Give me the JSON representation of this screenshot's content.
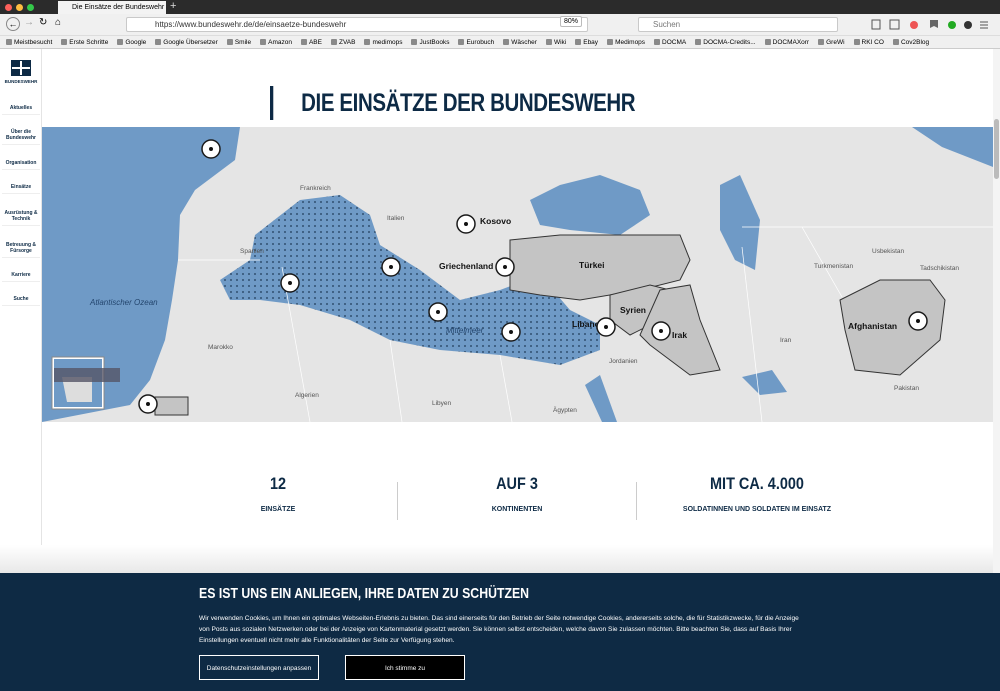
{
  "browser": {
    "tab_title": "Die Einsätze der Bundeswehr",
    "url": "https://www.bundeswehr.de/de/einsaetze-bundeswehr",
    "zoom": "80%",
    "search_placeholder": "Suchen",
    "bookmarks": [
      "Meistbesucht",
      "Erste Schritte",
      "Google",
      "Google Übersetzer",
      "Smile",
      "Amazon",
      "ABE",
      "ZVAB",
      "medimops",
      "JustBooks",
      "Eurobuch",
      "Wäscher",
      "Wiki",
      "Ebay",
      "Medimops",
      "DOCMA",
      "DOCMA-Credits...",
      "DOCMAXorr",
      "GreWi",
      "RKI CO",
      "Cov2Blog"
    ]
  },
  "sidebar": {
    "logo": "BUNDESWEHR",
    "items": [
      "Aktuelles",
      "Über die Bundeswehr",
      "Organisation",
      "Einsätze",
      "Ausrüstung & Technik",
      "Betreuung & Fürsorge",
      "Karriere",
      "Suche"
    ]
  },
  "page": {
    "title": "DIE EINSÄTZE DER BUNDESWEHR"
  },
  "map": {
    "labels": [
      "Frankreich",
      "Spanien",
      "Atlantischer Ozean",
      "Marokko",
      "Algerien",
      "Libyen",
      "Ägypten",
      "Italien",
      "Kosovo",
      "Griechenland",
      "Türkei",
      "Mittelmeer",
      "Libanon",
      "Syrien",
      "Irak",
      "Jordanien",
      "Iran",
      "Turkmenistan",
      "Usbekistan",
      "Tadschikistan",
      "Afghanistan",
      "Pakistan"
    ]
  },
  "stats": [
    {
      "value": "12",
      "label": "EINSÄTZE"
    },
    {
      "value": "AUF 3",
      "label": "KONTINENTEN"
    },
    {
      "value": "MIT CA. 4.000",
      "label": "SOLDATINNEN UND SOLDATEN IM EINSATZ"
    }
  ],
  "cookie_banner": {
    "title": "ES IST UNS EIN ANLIEGEN, IHRE DATEN ZU SCHÜTZEN",
    "text": "Wir verwenden Cookies, um Ihnen ein optimales Webseiten-Erlebnis zu bieten. Das sind einerseits für den Betrieb der Seite notwendige Cookies, andererseits solche, die für Statistikzwecke, für die Anzeige von Posts aus sozialen Netzwerken oder bei der Anzeige von Kartenmaterial gesetzt werden. Sie können selbst entscheiden, welche davon Sie zulassen möchten. Bitte beachten Sie, dass auf Basis Ihrer Einstellungen eventuell nicht mehr alle Funktionalitäten der Seite zur Verfügung stehen.",
    "buttons": [
      "Datenschutzeinstellungen anpassen",
      "Ich stimme zu"
    ]
  }
}
